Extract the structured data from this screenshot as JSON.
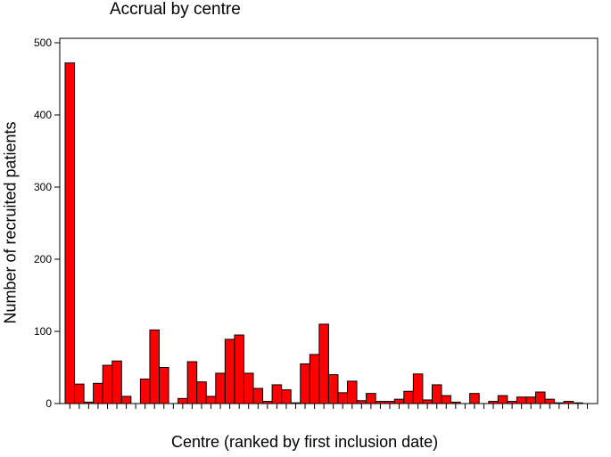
{
  "chart_data": {
    "type": "bar",
    "title": "Accrual by centre",
    "xlabel": "Centre (ranked by first inclusion date)",
    "ylabel": "Number of recruited patients",
    "ylim": [
      0,
      500
    ],
    "yticks": [
      0,
      100,
      200,
      300,
      400,
      500
    ],
    "bar_color": "#ff0000",
    "values": [
      472,
      27,
      2,
      28,
      53,
      59,
      10,
      0,
      34,
      102,
      50,
      0,
      7,
      58,
      30,
      10,
      42,
      89,
      95,
      42,
      21,
      3,
      26,
      19,
      1,
      55,
      68,
      110,
      40,
      15,
      31,
      4,
      14,
      3,
      3,
      6,
      17,
      41,
      5,
      26,
      11,
      2,
      0,
      14,
      0,
      3,
      11,
      3,
      9,
      9,
      16,
      6,
      1,
      3,
      1,
      0
    ]
  }
}
